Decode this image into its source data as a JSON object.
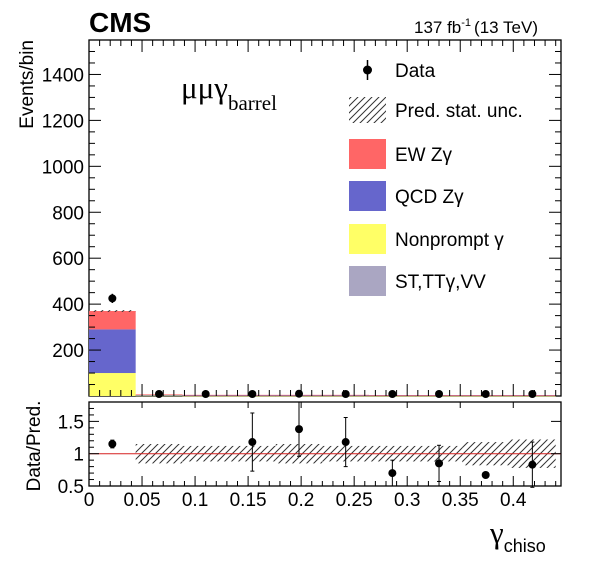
{
  "chart_data": {
    "type": "bar",
    "experiment": "CMS",
    "lumi_label": "137 fb",
    "lumi_exponent": "-1",
    "energy_label": "(13 TeV)",
    "channel_label_main": "μμγ",
    "channel_label_sub": "barrel",
    "xlabel_main": "γ",
    "xlabel_sub": "chiso",
    "ylabel_top": "Events/bin",
    "ylabel_bottom": "Data/Pred.",
    "xlim": [
      0,
      0.445
    ],
    "ylim_top": [
      0,
      1550
    ],
    "ylim_bottom": [
      0.5,
      1.8
    ],
    "x_ticks": [
      "0",
      "0.05",
      "0.1",
      "0.15",
      "0.2",
      "0.25",
      "0.3",
      "0.35",
      "0.4"
    ],
    "y_ticks_top": [
      "200",
      "400",
      "600",
      "800",
      "1000",
      "1200",
      "1400"
    ],
    "y_ticks_bottom": [
      "0.5",
      "1",
      "1.5"
    ],
    "bin_edges": [
      0,
      0.044,
      0.088,
      0.132,
      0.176,
      0.22,
      0.264,
      0.308,
      0.352,
      0.396,
      0.44
    ],
    "stack_series": [
      {
        "name": "Nonprompt γ",
        "color": "#ffff66",
        "values": [
          100,
          2,
          1,
          1,
          1,
          1,
          1,
          1,
          1,
          1
        ]
      },
      {
        "name": "QCD Zγ",
        "color": "#6666cc",
        "values": [
          190,
          3,
          2,
          2,
          2,
          2,
          2,
          2,
          2,
          2
        ]
      },
      {
        "name": "EW Zγ",
        "color": "#ff6666",
        "values": [
          80,
          2,
          2,
          2,
          2,
          2,
          1,
          1,
          1,
          1
        ]
      },
      {
        "name": "ST,TTγ,VV",
        "color": "#aaa6c2",
        "values": [
          0,
          0,
          0,
          0,
          0,
          0,
          0,
          0,
          0,
          0
        ]
      }
    ],
    "data_series": {
      "name": "Data",
      "x": [
        0.022,
        0.066,
        0.11,
        0.154,
        0.198,
        0.242,
        0.286,
        0.33,
        0.374,
        0.418
      ],
      "y": [
        425,
        0,
        2,
        5,
        10,
        5,
        2,
        5,
        0,
        5
      ],
      "yerr": [
        20,
        0,
        1.4,
        2.2,
        3.2,
        2.2,
        1.4,
        2.2,
        0,
        2.2
      ]
    },
    "ratio": {
      "x": [
        0.022,
        0.066,
        0.11,
        0.154,
        0.198,
        0.242,
        0.286,
        0.33,
        0.374,
        0.418
      ],
      "y": [
        1.15,
        null,
        null,
        1.18,
        1.38,
        1.18,
        0.7,
        0.85,
        0.67,
        0.83
      ],
      "yerr": [
        0.06,
        null,
        null,
        0.45,
        0.42,
        0.38,
        0.2,
        0.28,
        0.0,
        0.35
      ],
      "stat_unc": [
        0.03,
        0.15,
        0.12,
        0.12,
        0.15,
        0.12,
        0.12,
        0.12,
        0.18,
        0.22
      ],
      "reference_line": 1.0
    },
    "legend": {
      "placement": "top-right",
      "entries": [
        "Data",
        "Pred. stat. unc.",
        "EW Zγ",
        "QCD Zγ",
        "Nonprompt γ",
        "ST,TTγ,VV"
      ]
    }
  }
}
